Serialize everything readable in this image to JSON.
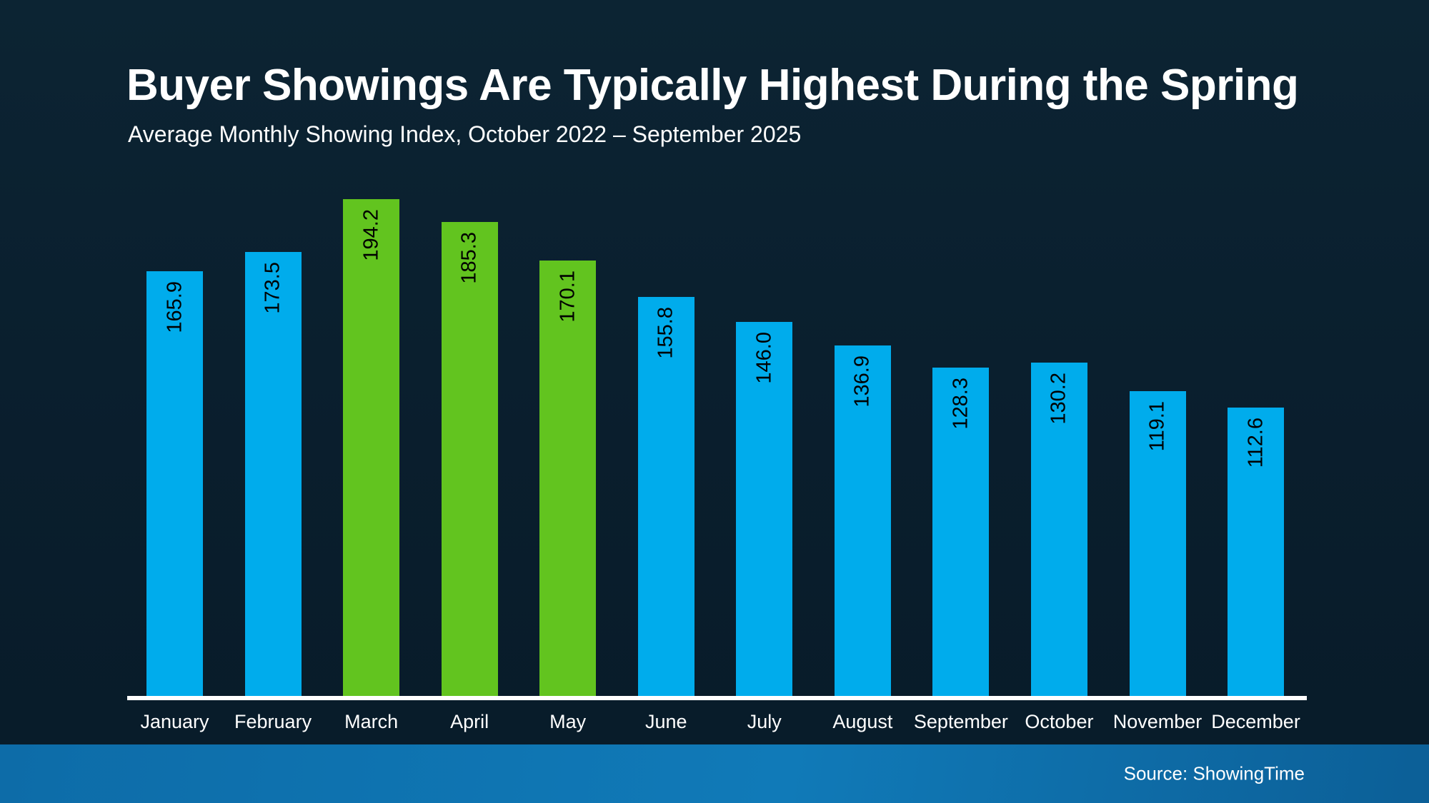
{
  "header": {
    "title": "Buyer Showings Are Typically Highest During the Spring",
    "subtitle": "Average Monthly Showing Index, October 2022 – September 2025"
  },
  "footer": {
    "source": "Source: ShowingTime"
  },
  "colors": {
    "background_top": "#0C2433",
    "background_bottom": "#081B29",
    "bar_blue": "#00ACEC",
    "bar_green": "#62C41F",
    "axis_line": "#FFFFFF",
    "value_label": "#000000",
    "text": "#FFFFFF",
    "footer_left": "#0D6CA8",
    "footer_mid": "#107AB8",
    "footer_right": "#0C5F97"
  },
  "chart_data": {
    "type": "bar",
    "title": "Buyer Showings Are Typically Highest During the Spring",
    "subtitle": "Average Monthly Showing Index, October 2022 – September 2025",
    "categories": [
      "January",
      "February",
      "March",
      "April",
      "May",
      "June",
      "July",
      "August",
      "September",
      "October",
      "November",
      "December"
    ],
    "values": [
      165.9,
      173.5,
      194.2,
      185.3,
      170.1,
      155.8,
      146.0,
      136.9,
      128.3,
      130.2,
      119.1,
      112.6
    ],
    "value_labels": [
      "165.9",
      "173.5",
      "194.2",
      "185.3",
      "170.1",
      "155.8",
      "146.0",
      "136.9",
      "128.3",
      "130.2",
      "119.1",
      "112.6"
    ],
    "bar_color_keys": [
      "blue",
      "blue",
      "green",
      "green",
      "green",
      "blue",
      "blue",
      "blue",
      "blue",
      "blue",
      "blue",
      "blue"
    ],
    "highlighted_categories": [
      "March",
      "April",
      "May"
    ],
    "ylim": [
      0,
      200
    ],
    "gridlines": false,
    "y_axis_shown": false,
    "legend": "none",
    "value_label_orientation": "vertical-bottom-to-top",
    "source": "Source: ShowingTime"
  }
}
